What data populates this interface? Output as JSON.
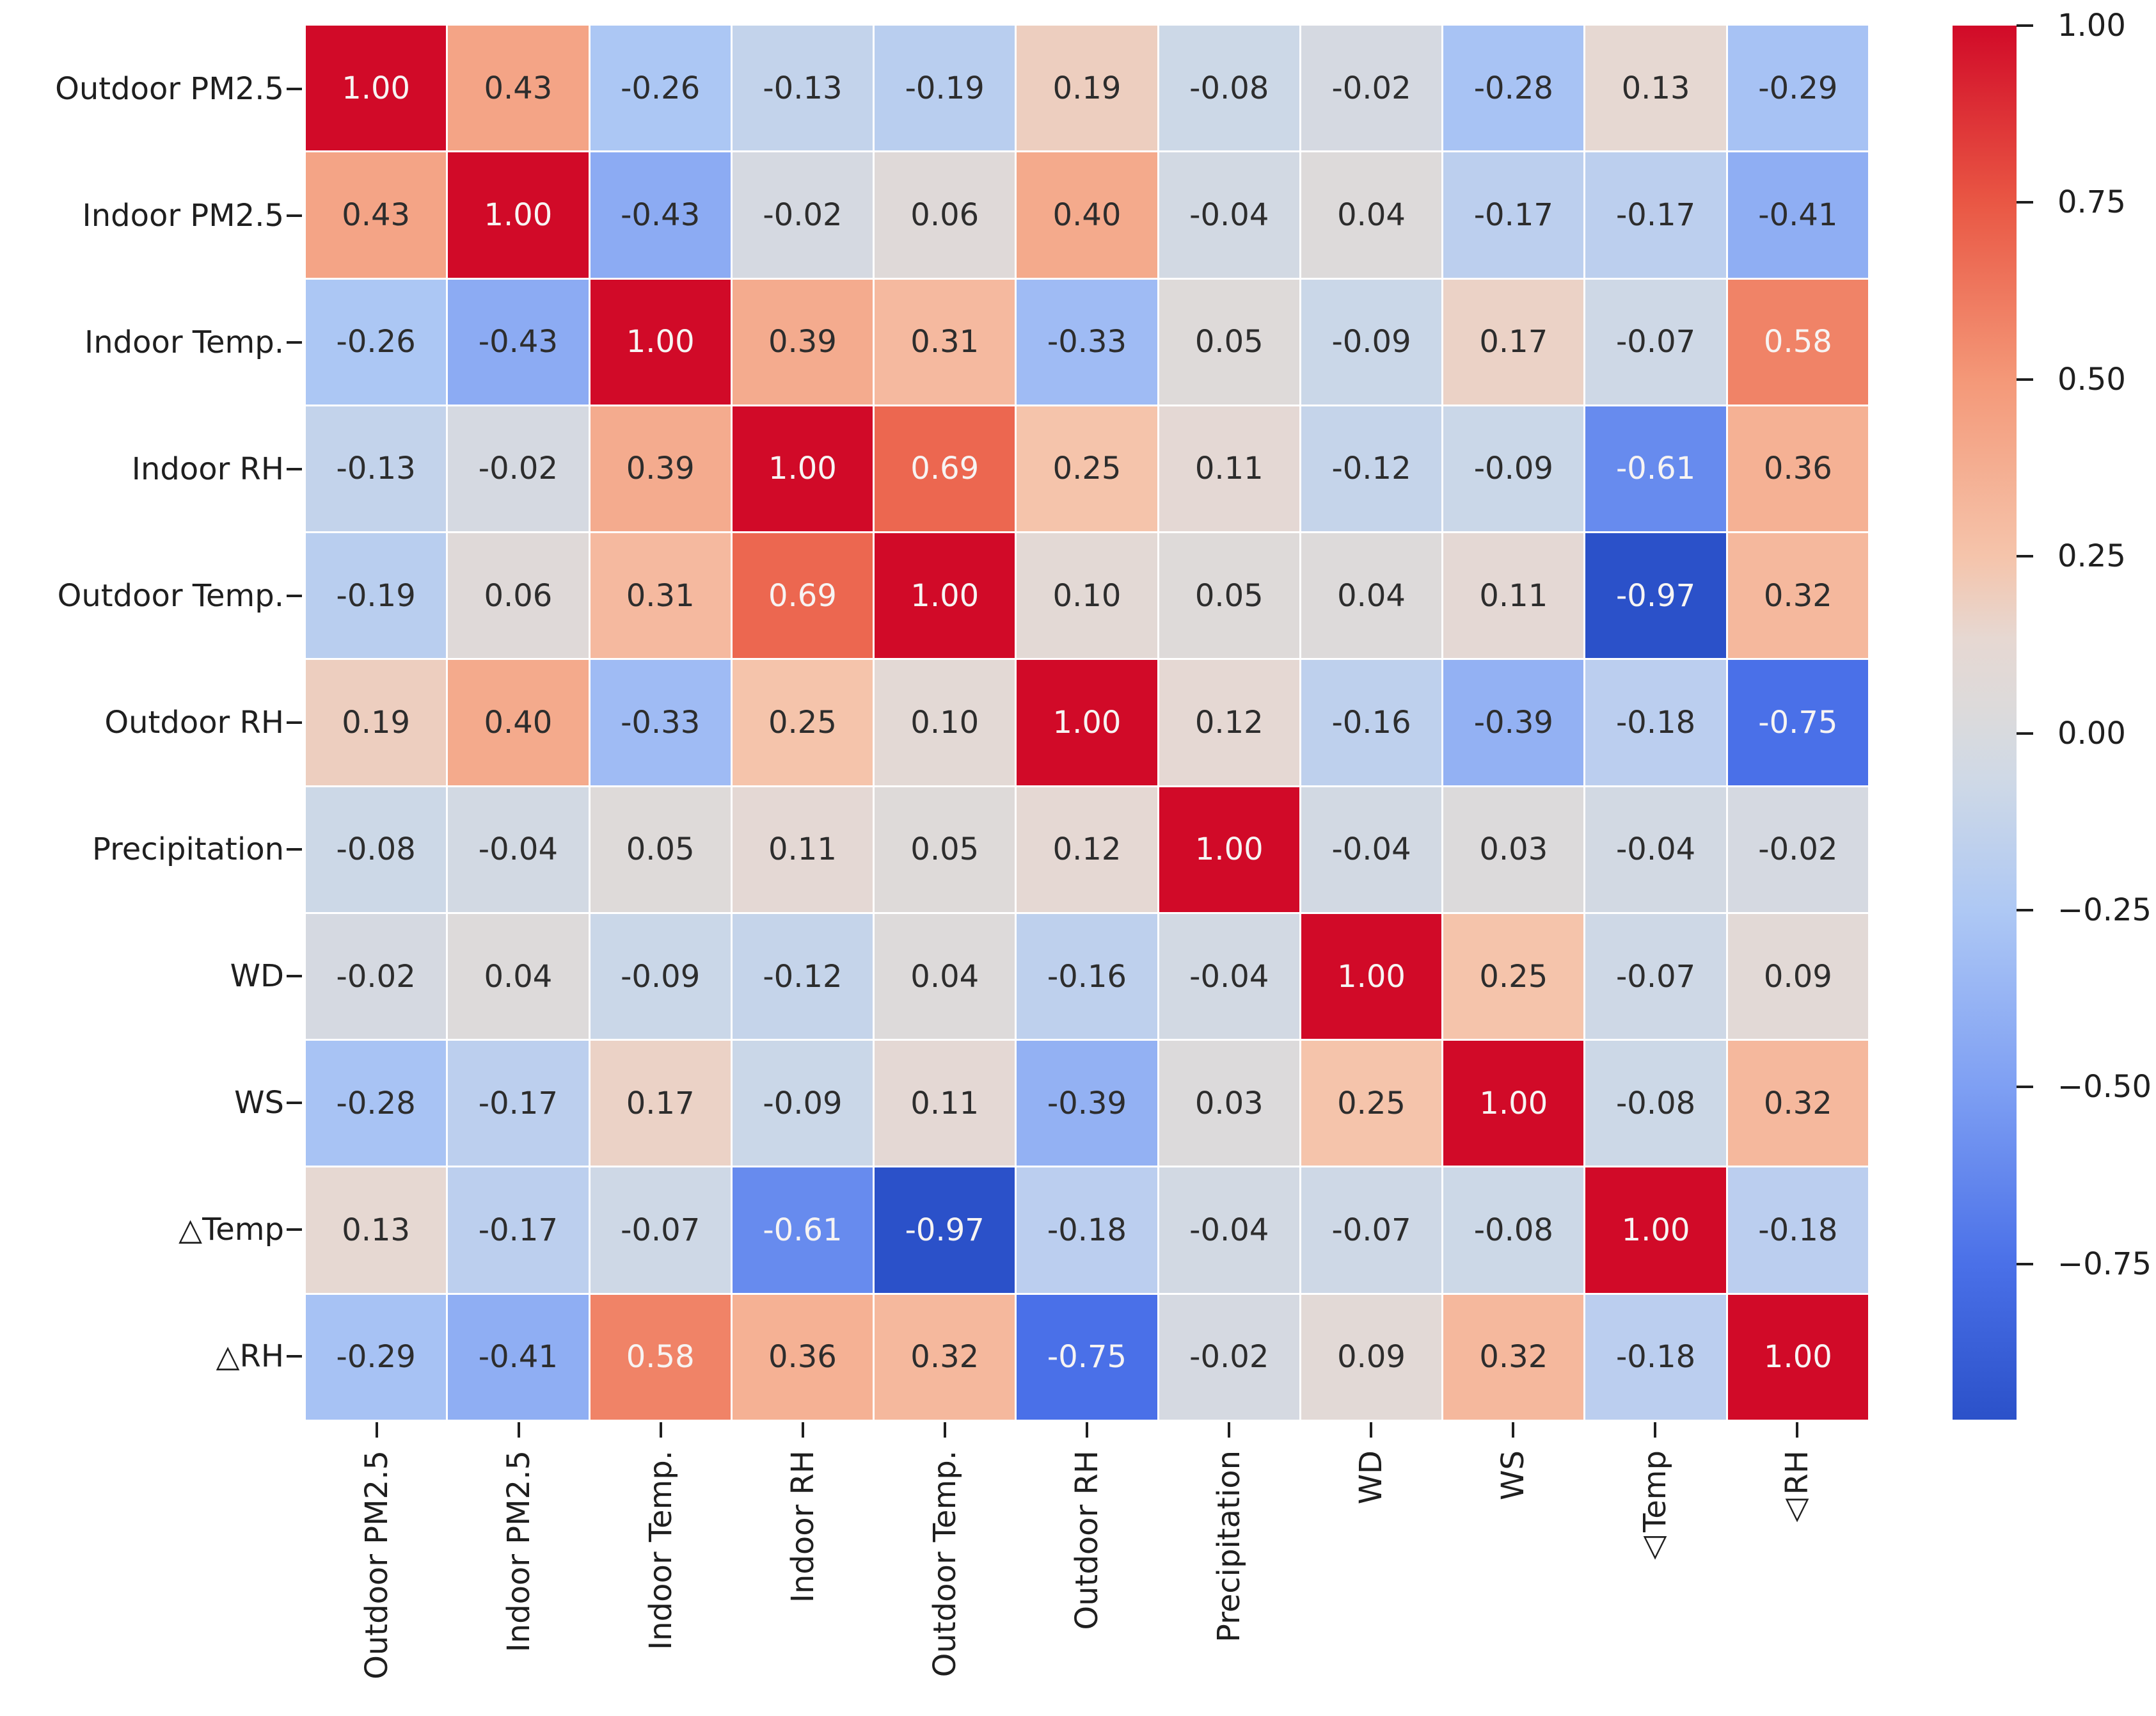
{
  "figure": {
    "background": "#ffffff",
    "text_color": "#1f1f1f"
  },
  "chart_data": {
    "type": "heatmap",
    "title": "",
    "categories": [
      "Outdoor PM2.5",
      "Indoor PM2.5",
      "Indoor Temp.",
      "Indoor RH",
      "Outdoor Temp.",
      "Outdoor RH",
      "Precipitation",
      "WD",
      "WS",
      "△Temp",
      "△RH"
    ],
    "matrix": [
      [
        1.0,
        0.43,
        -0.26,
        -0.13,
        -0.19,
        0.19,
        -0.08,
        -0.02,
        -0.28,
        0.13,
        -0.29
      ],
      [
        0.43,
        1.0,
        -0.43,
        -0.02,
        0.06,
        0.4,
        -0.04,
        0.04,
        -0.17,
        -0.17,
        -0.41
      ],
      [
        -0.26,
        -0.43,
        1.0,
        0.39,
        0.31,
        -0.33,
        0.05,
        -0.09,
        0.17,
        -0.07,
        0.58
      ],
      [
        -0.13,
        -0.02,
        0.39,
        1.0,
        0.69,
        0.25,
        0.11,
        -0.12,
        -0.09,
        -0.61,
        0.36
      ],
      [
        -0.19,
        0.06,
        0.31,
        0.69,
        1.0,
        0.1,
        0.05,
        0.04,
        0.11,
        -0.97,
        0.32
      ],
      [
        0.19,
        0.4,
        -0.33,
        0.25,
        0.1,
        1.0,
        0.12,
        -0.16,
        -0.39,
        -0.18,
        -0.75
      ],
      [
        -0.08,
        -0.04,
        0.05,
        0.11,
        0.05,
        0.12,
        1.0,
        -0.04,
        0.03,
        -0.04,
        -0.02
      ],
      [
        -0.02,
        0.04,
        -0.09,
        -0.12,
        0.04,
        -0.16,
        -0.04,
        1.0,
        0.25,
        -0.07,
        0.09
      ],
      [
        -0.28,
        -0.17,
        0.17,
        -0.09,
        0.11,
        -0.39,
        0.03,
        0.25,
        1.0,
        -0.08,
        0.32
      ],
      [
        0.13,
        -0.17,
        -0.07,
        -0.61,
        -0.97,
        -0.18,
        -0.04,
        -0.07,
        -0.08,
        1.0,
        -0.18
      ],
      [
        -0.29,
        -0.41,
        0.58,
        0.36,
        0.32,
        -0.75,
        -0.02,
        0.09,
        0.32,
        -0.18,
        1.0
      ]
    ],
    "value_decimals": 2,
    "vmin": -0.97,
    "vmax": 1.0,
    "grid_line_color": "#ffffff",
    "annotation_colors": {
      "dark": "#2d2d2d",
      "light": "#f7f4f3"
    },
    "white_text_threshold": 0.5,
    "colormap": {
      "name": "coolwarm-like",
      "stops": [
        [
          0.0,
          "#2b51c9"
        ],
        [
          0.111,
          "#4a70e8"
        ],
        [
          0.238,
          "#7e9ff3"
        ],
        [
          0.365,
          "#aec8f4"
        ],
        [
          0.46,
          "#cfd9e6"
        ],
        [
          0.508,
          "#dcdadb"
        ],
        [
          0.56,
          "#e6d8d2"
        ],
        [
          0.619,
          "#f5c4ab"
        ],
        [
          0.746,
          "#f49878"
        ],
        [
          0.873,
          "#e95744"
        ],
        [
          1.0,
          "#d10a28"
        ]
      ]
    },
    "colorbar": {
      "position": "right",
      "tick_values": [
        1.0,
        0.75,
        0.5,
        0.25,
        0.0,
        -0.25,
        -0.5,
        -0.75
      ],
      "tick_labels": [
        "1.00",
        "0.75",
        "0.50",
        "0.25",
        "0.00",
        "−0.25",
        "−0.50",
        "−0.75"
      ]
    },
    "legend": "none",
    "axes": {
      "x_tick_rotation_deg": 90,
      "y_tick_rotation_deg": 0
    }
  }
}
